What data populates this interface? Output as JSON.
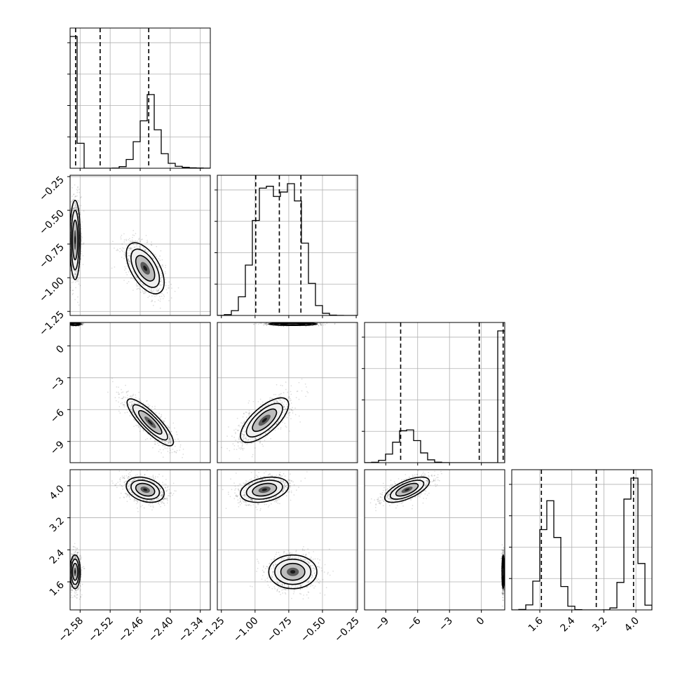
{
  "chart_data": {
    "type": "corner",
    "grid": true,
    "parameters": [
      {
        "range": [
          -2.6,
          -2.32
        ],
        "ticks": [
          -2.58,
          -2.52,
          -2.46,
          -2.4,
          -2.34
        ],
        "tick_labels": [
          "−2.58",
          "−2.52",
          "−2.46",
          "−2.40",
          "−2.34"
        ],
        "quantiles": [
          -2.589,
          -2.54,
          -2.443
        ],
        "modes": [
          {
            "weight": 0.5,
            "mean": -2.59,
            "sd": 0.004
          },
          {
            "weight": 0.5,
            "mean": -2.447,
            "sd": 0.018,
            "tail": 0.02
          }
        ]
      },
      {
        "range": [
          -1.28,
          -0.24
        ],
        "ticks": [
          -1.25,
          -1.0,
          -0.75,
          -0.5,
          -0.25
        ],
        "tick_labels": [
          "−1.25",
          "−1.00",
          "−0.75",
          "−0.50",
          "−0.25"
        ],
        "quantiles": [
          -0.995,
          -0.82,
          -0.66
        ],
        "modes": [
          {
            "weight": 0.5,
            "mean": -0.93,
            "sd": 0.085
          },
          {
            "weight": 0.5,
            "mean": -0.72,
            "sd": 0.085
          }
        ]
      },
      {
        "range": [
          -11.0,
          2.2
        ],
        "ticks": [
          -9,
          -6,
          -3,
          0
        ],
        "tick_labels": [
          "−9",
          "−6",
          "−3",
          "0"
        ],
        "quantiles": [
          -7.6,
          -0.2,
          2.05
        ],
        "modes": [
          {
            "weight": 0.5,
            "mean": -7.0,
            "sd": 1.0
          },
          {
            "weight": 0.5,
            "mean": 2.05,
            "sd": 0.05
          }
        ]
      },
      {
        "range": [
          0.9,
          4.4
        ],
        "ticks": [
          1.6,
          2.4,
          3.2,
          4.0
        ],
        "tick_labels": [
          "1.6",
          "2.4",
          "3.2",
          "4.0"
        ],
        "quantiles": [
          1.64,
          3.01,
          3.94
        ],
        "modes": [
          {
            "weight": 0.5,
            "mean": 1.85,
            "sd": 0.2
          },
          {
            "weight": 0.5,
            "mean": 3.9,
            "sd": 0.15
          }
        ]
      }
    ],
    "pairs": [
      {
        "row": 1,
        "col": 0,
        "blobs": [
          {
            "x": -2.59,
            "y": -0.72,
            "sx": 0.005,
            "sy": 0.14,
            "rho": 0.0
          },
          {
            "x": -2.45,
            "y": -0.93,
            "sx": 0.018,
            "sy": 0.09,
            "rho": -0.55
          }
        ]
      },
      {
        "row": 2,
        "col": 0,
        "blobs": [
          {
            "x": -2.59,
            "y": 2.05,
            "sx": 0.005,
            "sy": 0.06,
            "rho": 0.0
          },
          {
            "x": -2.44,
            "y": -7.2,
            "sx": 0.022,
            "sy": 1.05,
            "rho": -0.85
          }
        ]
      },
      {
        "row": 3,
        "col": 0,
        "blobs": [
          {
            "x": -2.59,
            "y": 1.85,
            "sx": 0.005,
            "sy": 0.2,
            "rho": 0.0
          },
          {
            "x": -2.45,
            "y": 3.9,
            "sx": 0.018,
            "sy": 0.15,
            "rho": -0.3
          }
        ]
      },
      {
        "row": 2,
        "col": 1,
        "blobs": [
          {
            "x": -0.72,
            "y": 2.05,
            "sx": 0.085,
            "sy": 0.06,
            "rho": 0.0
          },
          {
            "x": -0.93,
            "y": -7.0,
            "sx": 0.085,
            "sy": 1.0,
            "rho": 0.7
          }
        ]
      },
      {
        "row": 3,
        "col": 1,
        "blobs": [
          {
            "x": -0.72,
            "y": 1.85,
            "sx": 0.085,
            "sy": 0.2,
            "rho": 0.0
          },
          {
            "x": -0.93,
            "y": 3.9,
            "sx": 0.085,
            "sy": 0.15,
            "rho": 0.3
          }
        ]
      },
      {
        "row": 3,
        "col": 2,
        "blobs": [
          {
            "x": 2.05,
            "y": 1.85,
            "sx": 0.05,
            "sy": 0.2,
            "rho": 0.0
          },
          {
            "x": -7.0,
            "y": 3.9,
            "sx": 1.0,
            "sy": 0.15,
            "rho": 0.65
          }
        ]
      }
    ]
  }
}
